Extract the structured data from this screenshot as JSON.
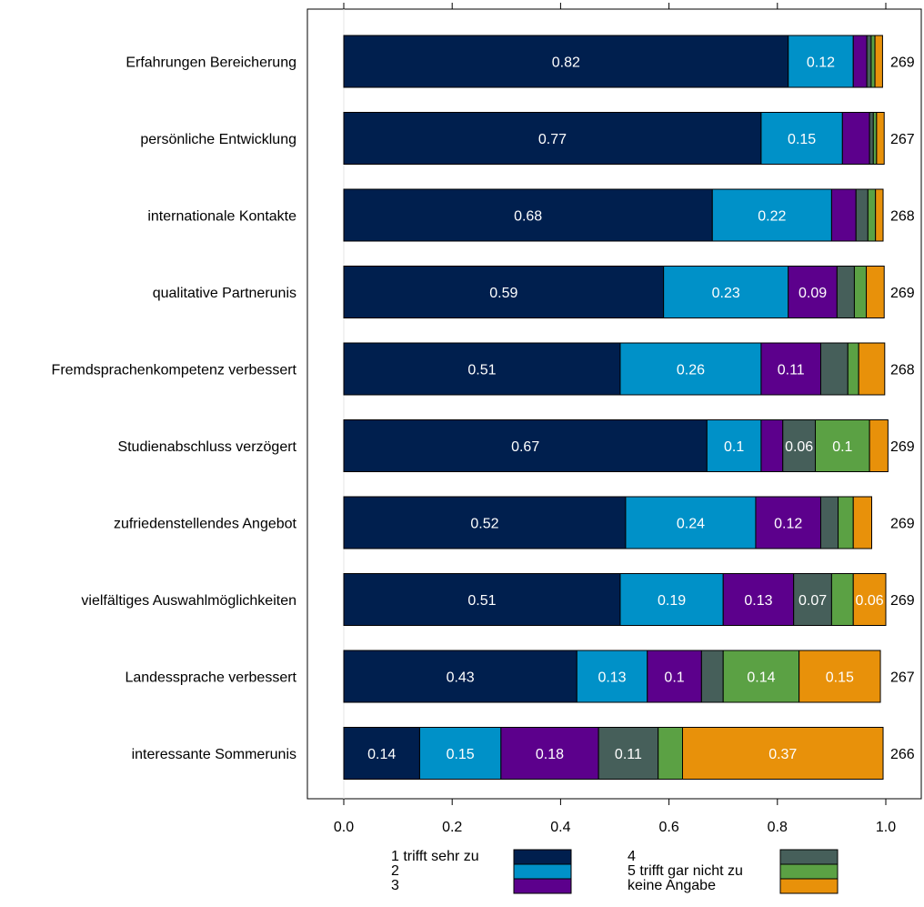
{
  "chart_data": {
    "type": "bar",
    "orientation": "horizontal",
    "stacked": true,
    "categories": [
      "Erfahrungen Bereicherung",
      "persönliche Entwicklung",
      "internationale Kontakte",
      "qualitative Partnerunis",
      "Fremdsprachenkompetenz verbessert",
      "Studienabschluss verzögert",
      "zufriedenstellendes Angebot",
      "vielfältiges Auswahlmöglichkeiten",
      "Landessprache verbessert",
      "interessante Sommerunis"
    ],
    "counts": [
      "269",
      "267",
      "268",
      "269",
      "268",
      "269",
      "269",
      "269",
      "267",
      "266"
    ],
    "series": [
      {
        "name": "1 trifft sehr zu",
        "color": "#001f4e",
        "values": [
          0.82,
          0.77,
          0.68,
          0.59,
          0.51,
          0.67,
          0.52,
          0.51,
          0.43,
          0.14
        ],
        "labels": [
          "0.82",
          "0.77",
          "0.68",
          "0.59",
          "0.51",
          "0.67",
          "0.52",
          "0.51",
          "0.43",
          "0.14"
        ]
      },
      {
        "name": "2",
        "color": "#0091c8",
        "values": [
          0.12,
          0.15,
          0.22,
          0.23,
          0.26,
          0.1,
          0.24,
          0.19,
          0.13,
          0.15
        ],
        "labels": [
          "0.12",
          "0.15",
          "0.22",
          "0.23",
          "0.26",
          "0.1",
          "0.24",
          "0.19",
          "0.13",
          "0.15"
        ]
      },
      {
        "name": "3",
        "color": "#5c008c",
        "values": [
          0.025,
          0.05,
          0.045,
          0.09,
          0.11,
          0.04,
          0.12,
          0.13,
          0.1,
          0.18
        ],
        "labels": [
          "",
          "",
          "",
          "0.09",
          "0.11",
          "",
          "0.12",
          "0.13",
          "0.1",
          "0.18"
        ]
      },
      {
        "name": "4",
        "color": "#465f5a",
        "values": [
          0.008,
          0.007,
          0.022,
          0.032,
          0.05,
          0.06,
          0.032,
          0.07,
          0.04,
          0.11
        ],
        "labels": [
          "",
          "",
          "",
          "",
          "",
          "0.06",
          "",
          "0.07",
          "",
          "0.11"
        ]
      },
      {
        "name": "5 trifft gar nicht zu",
        "color": "#5ba144",
        "values": [
          0.007,
          0.006,
          0.014,
          0.022,
          0.02,
          0.1,
          0.028,
          0.04,
          0.14,
          0.045
        ],
        "labels": [
          "",
          "",
          "",
          "",
          "",
          "0.1",
          "",
          "",
          "0.14",
          ""
        ]
      },
      {
        "name": "keine Angabe",
        "color": "#e8910a",
        "values": [
          0.014,
          0.014,
          0.014,
          0.033,
          0.048,
          0.034,
          0.034,
          0.06,
          0.15,
          0.37
        ],
        "labels": [
          "",
          "",
          "",
          "",
          "",
          "",
          "",
          "0.06",
          "0.15",
          "0.37"
        ]
      }
    ],
    "xlim": [
      0,
      1
    ],
    "xticks": [
      0.0,
      0.2,
      0.4,
      0.6,
      0.8,
      1.0
    ],
    "xtick_labels": [
      "0.0",
      "0.2",
      "0.4",
      "0.6",
      "0.8",
      "1.0"
    ],
    "title": "",
    "xlabel": "",
    "ylabel": "",
    "grid": false,
    "legend_position": "bottom"
  }
}
